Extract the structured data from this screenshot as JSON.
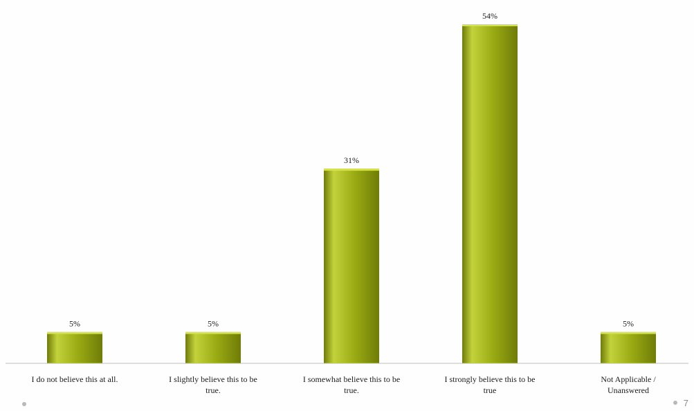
{
  "chart_data": {
    "type": "bar",
    "categories": [
      "I do not believe this at all.",
      "I slightly believe this to be true.",
      "I somewhat believe this to be true.",
      "I strongly believe this to be true",
      "Not Applicable / Unanswered"
    ],
    "category_lines": [
      [
        "I do not believe this at all."
      ],
      [
        "I slightly believe this to be",
        "true."
      ],
      [
        "I somewhat believe this to be",
        "true."
      ],
      [
        "I strongly believe this to be",
        "true"
      ],
      [
        "Not Applicable /",
        "Unanswered"
      ]
    ],
    "values": [
      5,
      5,
      31,
      54,
      5
    ],
    "value_labels": [
      "5%",
      "5%",
      "31%",
      "54%",
      "5%"
    ],
    "title": "",
    "xlabel": "",
    "ylabel": "",
    "ylim": [
      0,
      54
    ],
    "grid": false,
    "legend": "none",
    "colors": {
      "bar_main": "#9aab14",
      "bar_light": "#c3d23a",
      "bar_dark": "#6f7c08",
      "bar_top": "#d6e34a",
      "baseline": "#bdbdbd"
    }
  },
  "footer": {
    "page_number": "7"
  }
}
